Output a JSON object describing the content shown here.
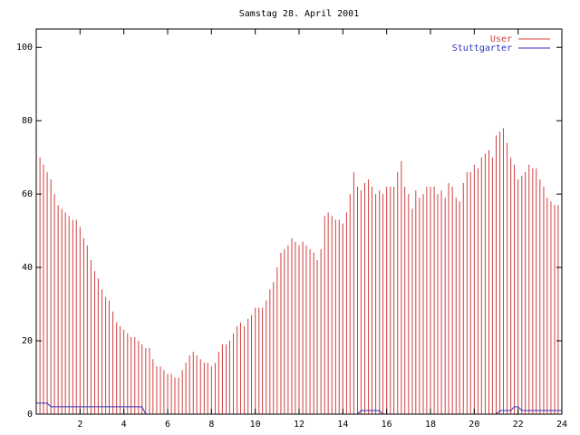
{
  "chart_data": {
    "type": "impulses",
    "title": "Samstag 28. April 2001",
    "xlim": [
      0,
      24
    ],
    "ylim": [
      0,
      105
    ],
    "xticks": [
      2,
      4,
      6,
      8,
      10,
      12,
      14,
      16,
      18,
      20,
      22,
      24
    ],
    "yticks": [
      0,
      20,
      40,
      60,
      80,
      100
    ],
    "legend": "upper right",
    "x": [
      0,
      0.17,
      0.33,
      0.5,
      0.67,
      0.83,
      1,
      1.17,
      1.33,
      1.5,
      1.67,
      1.83,
      2,
      2.17,
      2.33,
      2.5,
      2.67,
      2.83,
      3,
      3.17,
      3.33,
      3.5,
      3.67,
      3.83,
      4,
      4.17,
      4.33,
      4.5,
      4.67,
      4.83,
      5,
      5.17,
      5.33,
      5.5,
      5.67,
      5.83,
      6,
      6.17,
      6.33,
      6.5,
      6.67,
      6.83,
      7,
      7.17,
      7.33,
      7.5,
      7.67,
      7.83,
      8,
      8.17,
      8.33,
      8.5,
      8.67,
      8.83,
      9,
      9.17,
      9.33,
      9.5,
      9.67,
      9.83,
      10,
      10.17,
      10.33,
      10.5,
      10.67,
      10.83,
      11,
      11.17,
      11.33,
      11.5,
      11.67,
      11.83,
      12,
      12.17,
      12.33,
      12.5,
      12.67,
      12.83,
      13,
      13.17,
      13.33,
      13.5,
      13.67,
      13.83,
      14,
      14.17,
      14.33,
      14.5,
      14.67,
      14.83,
      15,
      15.17,
      15.33,
      15.5,
      15.67,
      15.83,
      16,
      16.17,
      16.33,
      16.5,
      16.67,
      16.83,
      17,
      17.17,
      17.33,
      17.5,
      17.67,
      17.83,
      18,
      18.17,
      18.33,
      18.5,
      18.67,
      18.83,
      19,
      19.17,
      19.33,
      19.5,
      19.67,
      19.83,
      20,
      20.17,
      20.33,
      20.5,
      20.67,
      20.83,
      21,
      21.17,
      21.33,
      21.5,
      21.67,
      21.83,
      22,
      22.17,
      22.33,
      22.5,
      22.67,
      22.83,
      23,
      23.17,
      23.33,
      23.5,
      23.67,
      23.83,
      24
    ],
    "series": [
      {
        "name": "User",
        "color": "#d04040",
        "style": "impulses",
        "values": [
          71,
          70,
          68,
          66,
          64,
          60,
          57,
          56,
          55,
          54,
          53,
          53,
          51,
          48,
          46,
          42,
          39,
          37,
          34,
          32,
          31,
          28,
          25,
          24,
          23,
          22,
          21,
          21,
          20,
          19,
          18,
          18,
          15,
          13,
          13,
          12,
          11,
          11,
          10,
          10,
          12,
          14,
          16,
          17,
          16,
          15,
          14,
          14,
          13,
          14,
          17,
          19,
          19,
          20,
          22,
          24,
          25,
          24,
          26,
          27,
          29,
          29,
          29,
          31,
          34,
          36,
          40,
          44,
          45,
          46,
          48,
          47,
          46,
          47,
          46,
          45,
          44,
          42,
          45,
          54,
          55,
          54,
          53,
          53,
          52,
          55,
          60,
          66,
          62,
          61,
          63,
          64,
          62,
          60,
          61,
          60,
          62,
          62,
          62,
          66,
          69,
          62,
          60,
          56,
          61,
          59,
          60,
          62,
          62,
          62,
          60,
          61,
          59,
          63,
          62,
          59,
          58,
          63,
          66,
          66,
          68,
          67,
          70,
          71,
          72,
          70,
          76,
          77,
          78,
          74,
          70,
          68,
          64,
          65,
          66,
          68,
          67,
          67,
          64,
          62,
          59,
          58,
          57,
          57,
          57
        ]
      },
      {
        "name": "Stuttgarter",
        "color": "#3030c0",
        "style": "line",
        "values": [
          3,
          3,
          3,
          3,
          2,
          2,
          2,
          2,
          2,
          2,
          2,
          2,
          2,
          2,
          2,
          2,
          2,
          2,
          2,
          2,
          2,
          2,
          2,
          2,
          2,
          2,
          2,
          2,
          2,
          2,
          0,
          0,
          0,
          0,
          0,
          0,
          0,
          0,
          0,
          0,
          0,
          0,
          0,
          0,
          0,
          0,
          0,
          0,
          0,
          0,
          0,
          0,
          0,
          0,
          0,
          0,
          0,
          0,
          0,
          0,
          0,
          0,
          0,
          0,
          0,
          0,
          0,
          0,
          0,
          0,
          0,
          0,
          0,
          0,
          0,
          0,
          0,
          0,
          0,
          0,
          0,
          0,
          0,
          0,
          0,
          0,
          0,
          0,
          0,
          1,
          1,
          1,
          1,
          1,
          1,
          0,
          0,
          0,
          0,
          0,
          0,
          0,
          0,
          0,
          0,
          0,
          0,
          0,
          0,
          0,
          0,
          0,
          0,
          0,
          0,
          0,
          0,
          0,
          0,
          0,
          0,
          0,
          0,
          0,
          0,
          0,
          0,
          1,
          1,
          1,
          1,
          2,
          2,
          1,
          1,
          1,
          1,
          1,
          1,
          1,
          1,
          1,
          1,
          1,
          1
        ]
      }
    ]
  }
}
